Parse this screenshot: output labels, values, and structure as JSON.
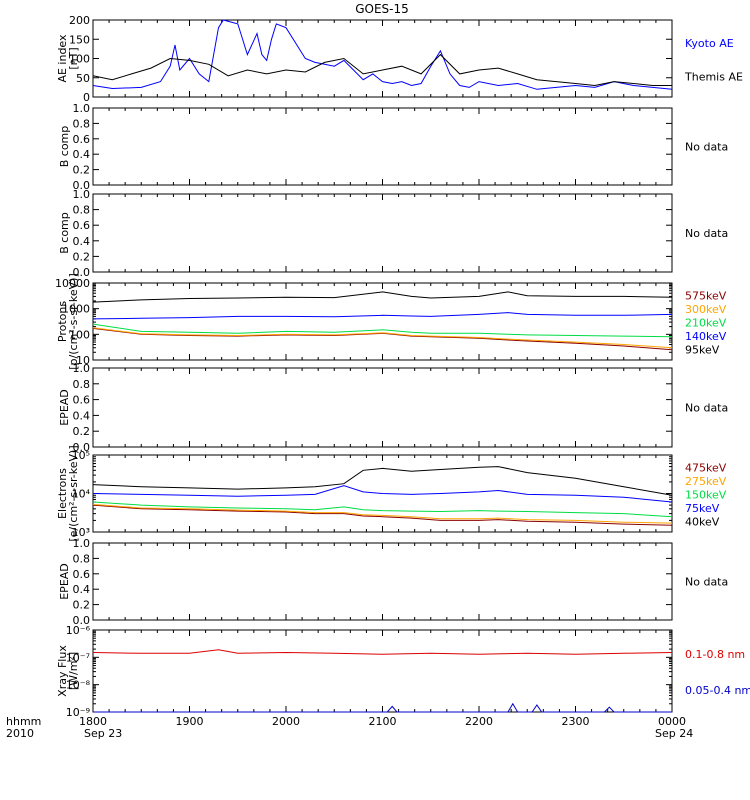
{
  "title": "GOES-15",
  "time_axis": {
    "label_line1": "hhmm",
    "label_line2": "2010",
    "ticks": [
      "1800",
      "1900",
      "2000",
      "2100",
      "2200",
      "2300",
      "0000"
    ],
    "start_date": "Sep 23",
    "end_date": "Sep 24"
  },
  "chart_data": [
    {
      "type": "line",
      "id": "ae",
      "ylabel": "AE index",
      "yunit": "[nT]",
      "scale": "linear",
      "ylim": [
        0,
        200
      ],
      "yticks": [
        "0",
        "50",
        "100",
        "150",
        "200"
      ],
      "series": [
        {
          "name": "Kyoto AE",
          "color": "#0000ff",
          "x": [
            18.0,
            18.2,
            18.5,
            18.7,
            18.8,
            18.85,
            18.9,
            19.0,
            19.1,
            19.2,
            19.3,
            19.35,
            19.5,
            19.6,
            19.7,
            19.75,
            19.8,
            19.85,
            19.9,
            20.0,
            20.1,
            20.2,
            20.3,
            20.4,
            20.5,
            20.6,
            20.7,
            20.8,
            20.9,
            21.0,
            21.1,
            21.2,
            21.3,
            21.4,
            21.5,
            21.6,
            21.7,
            21.8,
            21.9,
            22.0,
            22.2,
            22.4,
            22.6,
            22.8,
            23.0,
            23.2,
            23.4,
            23.6,
            23.8,
            24.0
          ],
          "y": [
            30,
            22,
            25,
            40,
            80,
            135,
            70,
            100,
            60,
            40,
            180,
            200,
            190,
            110,
            165,
            110,
            95,
            150,
            190,
            180,
            140,
            100,
            90,
            85,
            80,
            95,
            70,
            45,
            60,
            40,
            35,
            40,
            30,
            35,
            80,
            120,
            60,
            30,
            25,
            40,
            30,
            35,
            20,
            25,
            30,
            25,
            40,
            30,
            25,
            20
          ]
        },
        {
          "name": "Themis AE",
          "color": "#000000",
          "x": [
            18.0,
            18.2,
            18.4,
            18.6,
            18.8,
            19.0,
            19.2,
            19.4,
            19.6,
            19.8,
            20.0,
            20.2,
            20.4,
            20.6,
            20.8,
            21.0,
            21.2,
            21.4,
            21.6,
            21.8,
            22.0,
            22.2,
            22.4,
            22.6,
            22.8,
            23.0,
            23.2,
            23.4,
            23.6,
            23.8,
            24.0
          ],
          "y": [
            55,
            45,
            60,
            75,
            100,
            95,
            85,
            55,
            70,
            60,
            70,
            65,
            90,
            100,
            60,
            70,
            80,
            60,
            110,
            60,
            70,
            75,
            60,
            45,
            40,
            35,
            30,
            40,
            35,
            30,
            30
          ]
        }
      ]
    },
    {
      "type": "line",
      "id": "bcomp1",
      "ylabel": "B comp",
      "scale": "linear",
      "ylim": [
        0,
        1
      ],
      "yticks": [
        "0.0",
        "0.2",
        "0.4",
        "0.6",
        "0.8",
        "1.0"
      ],
      "no_data": "No data",
      "series": []
    },
    {
      "type": "line",
      "id": "bcomp2",
      "ylabel": "B comp",
      "scale": "linear",
      "ylim": [
        0,
        1
      ],
      "yticks": [
        "0.0",
        "0.2",
        "0.4",
        "0.6",
        "0.8",
        "1.0"
      ],
      "no_data": "No data",
      "series": []
    },
    {
      "type": "line",
      "id": "protons",
      "ylabel": "Protons",
      "yunit": "[p/(cm²-s-sr-keV)]",
      "scale": "log",
      "ylim": [
        10,
        10000
      ],
      "yticks": [
        "10",
        "100",
        "1000",
        "10000"
      ],
      "x": [
        18.0,
        18.5,
        19.0,
        19.5,
        20.0,
        20.5,
        21.0,
        21.3,
        21.5,
        22.0,
        22.3,
        22.5,
        23.0,
        23.5,
        24.0
      ],
      "series": [
        {
          "name": "575keV",
          "color": "#8b0000",
          "y": [
            170,
            100,
            90,
            85,
            95,
            90,
            110,
            85,
            80,
            70,
            60,
            55,
            45,
            35,
            25
          ]
        },
        {
          "name": "300keV",
          "color": "#ffa500",
          "y": [
            180,
            105,
            95,
            90,
            100,
            95,
            115,
            90,
            85,
            75,
            65,
            60,
            50,
            40,
            30
          ]
        },
        {
          "name": "210keV",
          "color": "#00dd44",
          "y": [
            250,
            130,
            120,
            110,
            130,
            120,
            150,
            120,
            110,
            110,
            100,
            95,
            90,
            85,
            80
          ]
        },
        {
          "name": "140keV",
          "color": "#0000ff",
          "y": [
            400,
            420,
            450,
            500,
            500,
            480,
            550,
            520,
            500,
            600,
            700,
            600,
            550,
            550,
            600
          ]
        },
        {
          "name": "95keV",
          "color": "#000000",
          "y": [
            1800,
            2200,
            2500,
            2600,
            2800,
            2700,
            4500,
            3000,
            2600,
            3000,
            4500,
            3200,
            3000,
            3000,
            2800
          ]
        }
      ]
    },
    {
      "type": "line",
      "id": "epead1",
      "ylabel": "EPEAD",
      "scale": "linear",
      "ylim": [
        0,
        1
      ],
      "yticks": [
        "0.0",
        "0.2",
        "0.4",
        "0.6",
        "0.8",
        "1.0"
      ],
      "no_data": "No data",
      "series": []
    },
    {
      "type": "line",
      "id": "electrons",
      "ylabel": "Electrons",
      "yunit": "[e/(cm²-s-sr-keV)]",
      "scale": "log",
      "ylim": [
        1000,
        100000
      ],
      "yticks": [
        "10³",
        "10⁴",
        "10⁵"
      ],
      "x": [
        18.0,
        18.5,
        19.0,
        19.5,
        20.0,
        20.3,
        20.6,
        20.8,
        21.0,
        21.3,
        21.6,
        22.0,
        22.2,
        22.5,
        23.0,
        23.5,
        24.0
      ],
      "series": [
        {
          "name": "475keV",
          "color": "#8b0000",
          "y": [
            5000,
            4000,
            3800,
            3500,
            3300,
            3000,
            3000,
            2600,
            2500,
            2300,
            2000,
            2000,
            2100,
            1900,
            1800,
            1600,
            1500
          ]
        },
        {
          "name": "275keV",
          "color": "#ffa500",
          "y": [
            5200,
            4200,
            4000,
            3700,
            3500,
            3200,
            3200,
            2800,
            2700,
            2500,
            2200,
            2200,
            2300,
            2100,
            2000,
            1800,
            1700
          ]
        },
        {
          "name": "150keV",
          "color": "#00dd44",
          "y": [
            6000,
            5000,
            4500,
            4200,
            4000,
            3800,
            4500,
            3800,
            3600,
            3500,
            3400,
            3600,
            3500,
            3400,
            3200,
            3000,
            2500
          ]
        },
        {
          "name": "75keV",
          "color": "#0000ff",
          "y": [
            10000,
            9500,
            9000,
            8500,
            9000,
            9500,
            16000,
            11000,
            10000,
            9500,
            10000,
            11000,
            12000,
            9500,
            9000,
            8000,
            6000
          ]
        },
        {
          "name": "40keV",
          "color": "#000000",
          "y": [
            17000,
            15000,
            14000,
            13000,
            14000,
            15000,
            18000,
            40000,
            45000,
            38000,
            42000,
            48000,
            50000,
            35000,
            25000,
            15000,
            9000
          ]
        }
      ]
    },
    {
      "type": "line",
      "id": "epead2",
      "ylabel": "EPEAD",
      "scale": "linear",
      "ylim": [
        0,
        1
      ],
      "yticks": [
        "0.0",
        "0.2",
        "0.4",
        "0.6",
        "0.8",
        "1.0"
      ],
      "no_data": "No data",
      "series": []
    },
    {
      "type": "line",
      "id": "xray",
      "ylabel": "Xray Flux",
      "yunit": "[W/m²]",
      "scale": "log",
      "ylim": [
        1e-09,
        1e-06
      ],
      "yticks": [
        "10⁻⁹",
        "10⁻⁸",
        "10⁻⁷",
        "10⁻⁶"
      ],
      "series": [
        {
          "name": "0.1-0.8 nm",
          "color": "#dd0000",
          "x": [
            18.0,
            18.5,
            19.0,
            19.3,
            19.5,
            20.0,
            20.5,
            21.0,
            21.5,
            22.0,
            22.5,
            23.0,
            23.5,
            24.0
          ],
          "y": [
            1.5e-07,
            1.4e-07,
            1.4e-07,
            1.9e-07,
            1.4e-07,
            1.5e-07,
            1.4e-07,
            1.3e-07,
            1.4e-07,
            1.3e-07,
            1.4e-07,
            1.3e-07,
            1.4e-07,
            1.5e-07
          ]
        },
        {
          "name": "0.05-0.4 nm",
          "color": "#0000cc",
          "x": [
            18.0,
            19.0,
            20.0,
            20.5,
            21.05,
            21.1,
            21.15,
            21.5,
            22.3,
            22.35,
            22.4,
            22.55,
            22.6,
            22.65,
            23.3,
            23.35,
            23.4,
            24.0
          ],
          "y": [
            1e-09,
            1e-09,
            1e-09,
            1e-09,
            1e-09,
            1.6e-09,
            1e-09,
            1e-09,
            1e-09,
            2e-09,
            1e-09,
            1e-09,
            1.8e-09,
            1e-09,
            1e-09,
            1.5e-09,
            1e-09,
            1e-09
          ]
        }
      ]
    }
  ]
}
